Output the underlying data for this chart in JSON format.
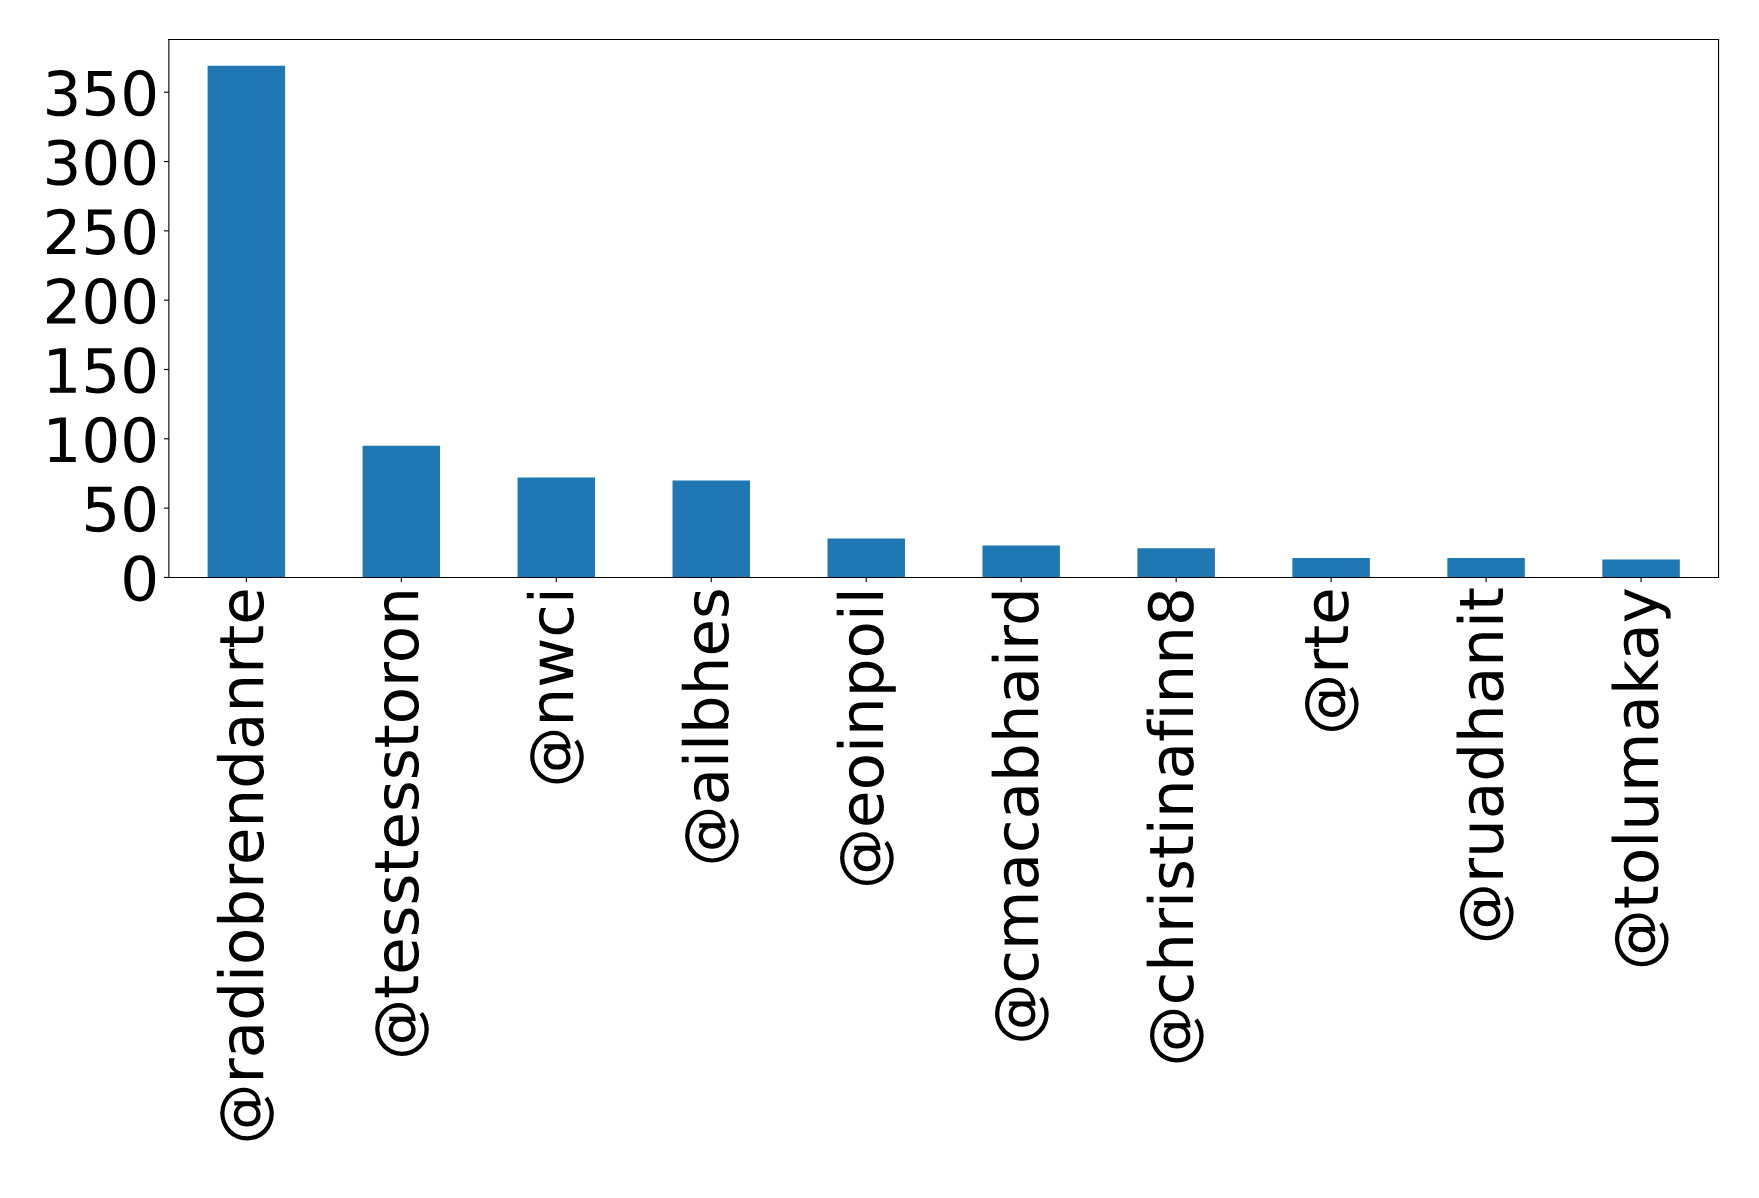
{
  "chart_data": {
    "type": "bar",
    "categories": [
      "@radiobrendanrte",
      "@tesstesstoron",
      "@nwci",
      "@ailbhes",
      "@eoinpoil",
      "@cmacabhaird",
      "@christinafinn8",
      "@rte",
      "@ruadhanit",
      "@tolumakay"
    ],
    "values": [
      369,
      95,
      72,
      70,
      28,
      23,
      21,
      14,
      14,
      13
    ],
    "color": "#1f77b4",
    "ylim": [
      0,
      388
    ],
    "yticks": [
      0,
      50,
      100,
      150,
      200,
      250,
      300,
      350
    ],
    "grid": false,
    "legend": false
  }
}
